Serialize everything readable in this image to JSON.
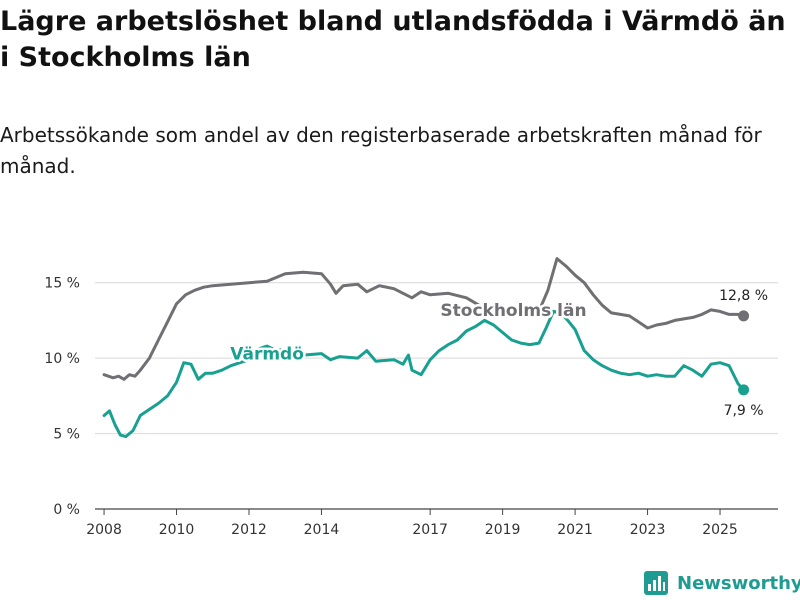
{
  "header": {
    "title": "Lägre arbetslöshet bland utlandsfödda i Värmdö än i Stockholms län",
    "subtitle": "Arbetssökande som andel av den registerbaserade arbetskraften månad för månad."
  },
  "brand": {
    "name": "Newsworthy",
    "icon": "bar-chart-logo-icon",
    "color": "#1f9c92"
  },
  "colors": {
    "stockholm": "#6f6f74",
    "varmdo": "#18a091",
    "grid": "#d9d9d9",
    "axis": "#444444"
  },
  "chart_data": {
    "type": "line",
    "title": "Lägre arbetslöshet bland utlandsfödda i Värmdö än i Stockholms län",
    "xlabel": "",
    "ylabel": "",
    "xlim": [
      2007.75,
      2026.6
    ],
    "ylim": [
      0,
      17.5
    ],
    "grid": true,
    "x_ticks": [
      {
        "value": 2008,
        "label": "2008"
      },
      {
        "value": 2010,
        "label": "2010"
      },
      {
        "value": 2012,
        "label": "2012"
      },
      {
        "value": 2014,
        "label": "2014"
      },
      {
        "value": 2017,
        "label": "2017"
      },
      {
        "value": 2019,
        "label": "2019"
      },
      {
        "value": 2021,
        "label": "2021"
      },
      {
        "value": 2023,
        "label": "2023"
      },
      {
        "value": 2025,
        "label": "2025"
      }
    ],
    "y_ticks": [
      {
        "value": 0,
        "label": "0 %"
      },
      {
        "value": 5,
        "label": "5 %"
      },
      {
        "value": 10,
        "label": "10 %"
      },
      {
        "value": 15,
        "label": "15 %"
      }
    ],
    "series": [
      {
        "name": "Stockholms län",
        "color": "#6f6f74",
        "label_pos": [
          2019.3,
          13.2
        ],
        "end_label": "12,8 %",
        "points": [
          [
            2008.0,
            8.9
          ],
          [
            2008.25,
            8.7
          ],
          [
            2008.4,
            8.8
          ],
          [
            2008.55,
            8.6
          ],
          [
            2008.7,
            8.9
          ],
          [
            2008.85,
            8.8
          ],
          [
            2009.0,
            9.2
          ],
          [
            2009.25,
            10.0
          ],
          [
            2009.5,
            11.2
          ],
          [
            2009.75,
            12.4
          ],
          [
            2010.0,
            13.6
          ],
          [
            2010.25,
            14.2
          ],
          [
            2010.5,
            14.5
          ],
          [
            2010.75,
            14.7
          ],
          [
            2011.0,
            14.8
          ],
          [
            2011.5,
            14.9
          ],
          [
            2012.0,
            15.0
          ],
          [
            2012.5,
            15.1
          ],
          [
            2013.0,
            15.6
          ],
          [
            2013.5,
            15.7
          ],
          [
            2014.0,
            15.6
          ],
          [
            2014.25,
            14.9
          ],
          [
            2014.4,
            14.3
          ],
          [
            2014.6,
            14.8
          ],
          [
            2015.0,
            14.9
          ],
          [
            2015.25,
            14.4
          ],
          [
            2015.6,
            14.8
          ],
          [
            2016.0,
            14.6
          ],
          [
            2016.5,
            14.0
          ],
          [
            2016.75,
            14.4
          ],
          [
            2017.0,
            14.2
          ],
          [
            2017.5,
            14.3
          ],
          [
            2018.0,
            14.0
          ],
          [
            2018.5,
            13.3
          ],
          [
            2019.0,
            13.1
          ],
          [
            2019.5,
            13.1
          ],
          [
            2020.0,
            13.1
          ],
          [
            2020.25,
            14.5
          ],
          [
            2020.5,
            16.6
          ],
          [
            2020.75,
            16.1
          ],
          [
            2021.0,
            15.5
          ],
          [
            2021.25,
            15.0
          ],
          [
            2021.5,
            14.2
          ],
          [
            2021.75,
            13.5
          ],
          [
            2022.0,
            13.0
          ],
          [
            2022.25,
            12.9
          ],
          [
            2022.5,
            12.8
          ],
          [
            2022.75,
            12.4
          ],
          [
            2023.0,
            12.0
          ],
          [
            2023.25,
            12.2
          ],
          [
            2023.5,
            12.3
          ],
          [
            2023.75,
            12.5
          ],
          [
            2024.0,
            12.6
          ],
          [
            2024.25,
            12.7
          ],
          [
            2024.5,
            12.9
          ],
          [
            2024.75,
            13.2
          ],
          [
            2025.0,
            13.1
          ],
          [
            2025.25,
            12.9
          ],
          [
            2025.5,
            12.9
          ],
          [
            2025.65,
            12.8
          ]
        ]
      },
      {
        "name": "Värmdö",
        "color": "#18a091",
        "label_pos": [
          2012.5,
          10.3
        ],
        "end_label": "7,9 %",
        "points": [
          [
            2008.0,
            6.2
          ],
          [
            2008.15,
            6.5
          ],
          [
            2008.3,
            5.6
          ],
          [
            2008.45,
            4.9
          ],
          [
            2008.6,
            4.8
          ],
          [
            2008.8,
            5.2
          ],
          [
            2009.0,
            6.2
          ],
          [
            2009.25,
            6.6
          ],
          [
            2009.5,
            7.0
          ],
          [
            2009.75,
            7.5
          ],
          [
            2010.0,
            8.4
          ],
          [
            2010.2,
            9.7
          ],
          [
            2010.4,
            9.6
          ],
          [
            2010.6,
            8.6
          ],
          [
            2010.8,
            9.0
          ],
          [
            2011.0,
            9.0
          ],
          [
            2011.25,
            9.2
          ],
          [
            2011.5,
            9.5
          ],
          [
            2011.75,
            9.7
          ],
          [
            2012.0,
            9.9
          ],
          [
            2012.25,
            10.6
          ],
          [
            2012.5,
            10.8
          ],
          [
            2012.75,
            10.5
          ],
          [
            2013.0,
            10.6
          ],
          [
            2013.5,
            10.2
          ],
          [
            2014.0,
            10.3
          ],
          [
            2014.25,
            9.9
          ],
          [
            2014.5,
            10.1
          ],
          [
            2015.0,
            10.0
          ],
          [
            2015.25,
            10.5
          ],
          [
            2015.5,
            9.8
          ],
          [
            2016.0,
            9.9
          ],
          [
            2016.25,
            9.6
          ],
          [
            2016.4,
            10.2
          ],
          [
            2016.5,
            9.2
          ],
          [
            2016.75,
            8.9
          ],
          [
            2017.0,
            9.9
          ],
          [
            2017.25,
            10.5
          ],
          [
            2017.5,
            10.9
          ],
          [
            2017.75,
            11.2
          ],
          [
            2018.0,
            11.8
          ],
          [
            2018.25,
            12.1
          ],
          [
            2018.5,
            12.5
          ],
          [
            2018.75,
            12.2
          ],
          [
            2019.0,
            11.7
          ],
          [
            2019.25,
            11.2
          ],
          [
            2019.5,
            11.0
          ],
          [
            2019.75,
            10.9
          ],
          [
            2020.0,
            11.0
          ],
          [
            2020.2,
            12.0
          ],
          [
            2020.4,
            13.1
          ],
          [
            2020.6,
            13.0
          ],
          [
            2020.8,
            12.5
          ],
          [
            2021.0,
            11.9
          ],
          [
            2021.25,
            10.5
          ],
          [
            2021.5,
            9.9
          ],
          [
            2021.75,
            9.5
          ],
          [
            2022.0,
            9.2
          ],
          [
            2022.25,
            9.0
          ],
          [
            2022.5,
            8.9
          ],
          [
            2022.75,
            9.0
          ],
          [
            2023.0,
            8.8
          ],
          [
            2023.25,
            8.9
          ],
          [
            2023.5,
            8.8
          ],
          [
            2023.75,
            8.8
          ],
          [
            2024.0,
            9.5
          ],
          [
            2024.25,
            9.2
          ],
          [
            2024.5,
            8.8
          ],
          [
            2024.75,
            9.6
          ],
          [
            2025.0,
            9.7
          ],
          [
            2025.25,
            9.5
          ],
          [
            2025.5,
            8.3
          ],
          [
            2025.65,
            7.9
          ]
        ]
      }
    ]
  }
}
